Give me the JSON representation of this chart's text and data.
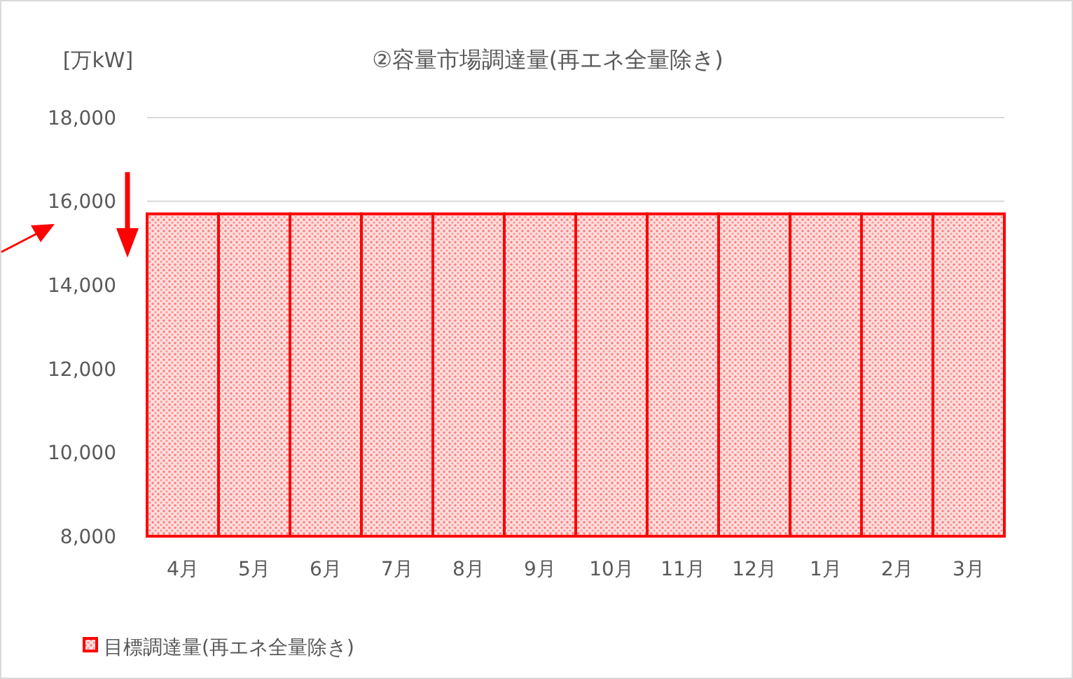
{
  "chart_data": {
    "type": "bar",
    "title": "②容量市場調達量(再エネ全量除き)",
    "ylabel": "[万kW]",
    "categories": [
      "4月",
      "5月",
      "6月",
      "7月",
      "8月",
      "9月",
      "10月",
      "11月",
      "12月",
      "1月",
      "2月",
      "3月"
    ],
    "series": [
      {
        "name": "目標調達量(再エネ全量除き)",
        "color": "#ff0000",
        "values": [
          15700,
          15700,
          15700,
          15700,
          15700,
          15700,
          15700,
          15700,
          15700,
          15700,
          15700,
          15700
        ]
      }
    ],
    "ylim": [
      8000,
      18000
    ],
    "yticks": [
      {
        "value": 8000,
        "label": "8,000"
      },
      {
        "value": 10000,
        "label": "10,000"
      },
      {
        "value": 12000,
        "label": "12,000"
      },
      {
        "value": 14000,
        "label": "14,000"
      },
      {
        "value": 16000,
        "label": "16,000"
      },
      {
        "value": 18000,
        "label": "18,000"
      }
    ],
    "grid": "y",
    "legend": "bottom left"
  }
}
